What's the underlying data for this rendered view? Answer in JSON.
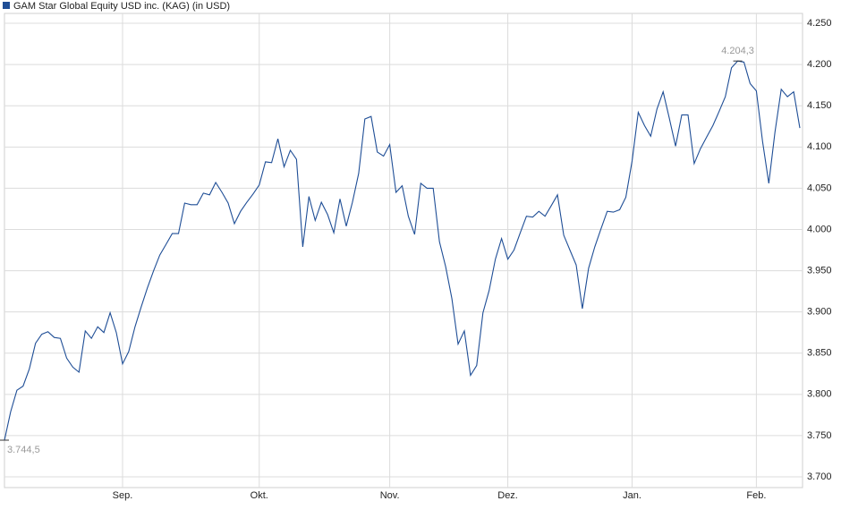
{
  "chart_data": {
    "type": "line",
    "categories": [
      null,
      null,
      null,
      null,
      null,
      null,
      null,
      null,
      null,
      null,
      null,
      null,
      null,
      null,
      null,
      null,
      null,
      null,
      null,
      "Sep.",
      null,
      null,
      null,
      null,
      null,
      null,
      null,
      null,
      null,
      null,
      null,
      null,
      null,
      null,
      null,
      null,
      null,
      null,
      null,
      null,
      null,
      "Okt.",
      null,
      null,
      null,
      null,
      null,
      null,
      null,
      null,
      null,
      null,
      null,
      null,
      null,
      null,
      null,
      null,
      null,
      null,
      null,
      null,
      "Nov.",
      null,
      null,
      null,
      null,
      null,
      null,
      null,
      null,
      null,
      null,
      null,
      null,
      null,
      null,
      null,
      null,
      null,
      null,
      "Dez.",
      null,
      null,
      null,
      null,
      null,
      null,
      null,
      null,
      null,
      null,
      null,
      null,
      null,
      null,
      null,
      null,
      null,
      null,
      null,
      "Jan.",
      null,
      null,
      null,
      null,
      null,
      null,
      null,
      null,
      null,
      null,
      null,
      null,
      null,
      null,
      null,
      null,
      null,
      null,
      null,
      "Feb.",
      null,
      null,
      null,
      null,
      null,
      null,
      null
    ],
    "series": [
      {
        "name": "GAM Star Global Equity USD inc. (KAG) (in USD)",
        "color": "#1f4e96",
        "values": [
          3744.5,
          3779,
          3805,
          3810,
          3831,
          3862,
          3873,
          3876,
          3869,
          3868,
          3844,
          3833,
          3827,
          3877,
          3868,
          3882,
          3875,
          3899,
          3875,
          3837,
          3852,
          3882,
          3906,
          3929,
          3950,
          3969,
          3982,
          3995,
          3995,
          4032,
          4030,
          4030,
          4044,
          4042,
          4057,
          4045,
          4032,
          4007,
          4022,
          4033,
          4043,
          4054,
          4082,
          4081,
          4110,
          4076,
          4096,
          4085,
          3979,
          4040,
          4011,
          4033,
          4018,
          3996,
          4037,
          4004,
          4033,
          4068,
          4134,
          4137,
          4094,
          4089,
          4103,
          4045,
          4053,
          4016,
          3994,
          4056,
          4050,
          4050,
          3985,
          3955,
          3916,
          3861,
          3877,
          3823,
          3835,
          3899,
          3926,
          3964,
          3989,
          3964,
          3975,
          3996,
          4016,
          4015,
          4022,
          4016,
          4029,
          4042,
          3993,
          3975,
          3957,
          3904,
          3953,
          3979,
          4001,
          4022,
          4021,
          4024,
          4039,
          4083,
          4142,
          4126,
          4113,
          4146,
          4167,
          4135,
          4101,
          4139,
          4139,
          4080,
          4098,
          4112,
          4126,
          4143,
          4161,
          4196,
          4204.3,
          4203,
          4177,
          4168,
          4107,
          4056,
          4118,
          4170,
          4161,
          4167,
          4123
        ],
        "value_labels": [
          "3.744,5",
          null,
          null,
          null,
          null,
          null,
          null,
          null,
          null,
          null,
          null,
          null,
          null,
          null,
          null,
          null,
          null,
          null,
          null,
          null,
          null,
          null,
          null,
          null,
          null,
          null,
          null,
          null,
          null,
          null,
          null,
          null,
          null,
          null,
          null,
          null,
          null,
          null,
          null,
          null,
          null,
          null,
          null,
          null,
          null,
          null,
          null,
          null,
          null,
          null,
          null,
          null,
          null,
          null,
          null,
          null,
          null,
          null,
          null,
          null,
          null,
          null,
          null,
          null,
          null,
          null,
          null,
          null,
          null,
          null,
          null,
          null,
          null,
          null,
          null,
          null,
          null,
          null,
          null,
          null,
          null,
          null,
          null,
          null,
          null,
          null,
          null,
          null,
          null,
          null,
          null,
          null,
          null,
          null,
          null,
          null,
          null,
          null,
          null,
          null,
          null,
          null,
          null,
          null,
          null,
          null,
          null,
          null,
          null,
          null,
          null,
          null,
          null,
          null,
          null,
          null,
          null,
          null,
          "4.204,3",
          null,
          null,
          null,
          null,
          null,
          null,
          null,
          null,
          null,
          null
        ]
      }
    ],
    "ylim": [
      3687,
      4262
    ],
    "yticks": [
      {
        "value": 3700,
        "label": "3.700"
      },
      {
        "value": 3750,
        "label": "3.750"
      },
      {
        "value": 3800,
        "label": "3.800"
      },
      {
        "value": 3850,
        "label": "3.850"
      },
      {
        "value": 3900,
        "label": "3.900"
      },
      {
        "value": 3950,
        "label": "3.950"
      },
      {
        "value": 4000,
        "label": "4.000"
      },
      {
        "value": 4050,
        "label": "4.050"
      },
      {
        "value": 4100,
        "label": "4.100"
      },
      {
        "value": 4150,
        "label": "4.150"
      },
      {
        "value": 4200,
        "label": "4.200"
      },
      {
        "value": 4250,
        "label": "4.250"
      }
    ],
    "grid": true
  }
}
